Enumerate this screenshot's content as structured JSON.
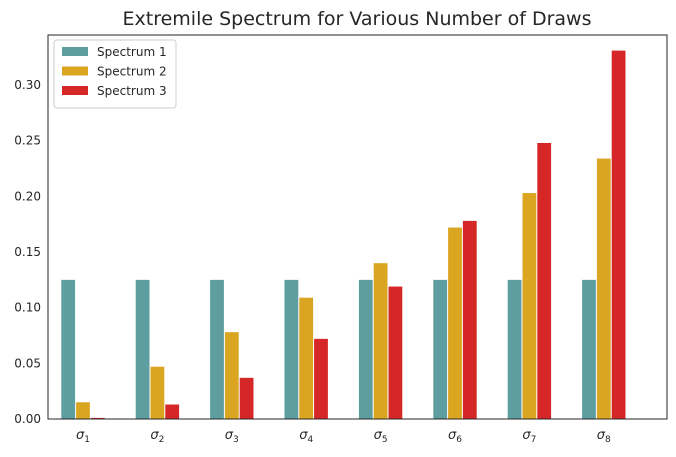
{
  "chart_data": {
    "type": "bar",
    "title": "Extremile Spectrum for Various Number of Draws",
    "xlabel": "",
    "ylabel": "",
    "categories": [
      {
        "base": "σ",
        "sub": "1"
      },
      {
        "base": "σ",
        "sub": "2"
      },
      {
        "base": "σ",
        "sub": "3"
      },
      {
        "base": "σ",
        "sub": "4"
      },
      {
        "base": "σ",
        "sub": "5"
      },
      {
        "base": "σ",
        "sub": "6"
      },
      {
        "base": "σ",
        "sub": "7"
      },
      {
        "base": "σ",
        "sub": "8"
      }
    ],
    "series": [
      {
        "name": "Spectrum 1",
        "color": "#5f9ea0",
        "values": [
          0.125,
          0.125,
          0.125,
          0.125,
          0.125,
          0.125,
          0.125,
          0.125
        ]
      },
      {
        "name": "Spectrum 2",
        "color": "#daa520",
        "values": [
          0.015,
          0.047,
          0.078,
          0.109,
          0.14,
          0.172,
          0.203,
          0.234
        ]
      },
      {
        "name": "Spectrum 3",
        "color": "#d62728",
        "values": [
          0.001,
          0.013,
          0.037,
          0.072,
          0.119,
          0.178,
          0.248,
          0.331
        ]
      }
    ],
    "ylim": [
      0,
      0.345
    ],
    "yticks": [
      "0.00",
      "0.05",
      "0.10",
      "0.15",
      "0.20",
      "0.25",
      "0.30"
    ],
    "grid": false,
    "legend_position": "top-left"
  }
}
